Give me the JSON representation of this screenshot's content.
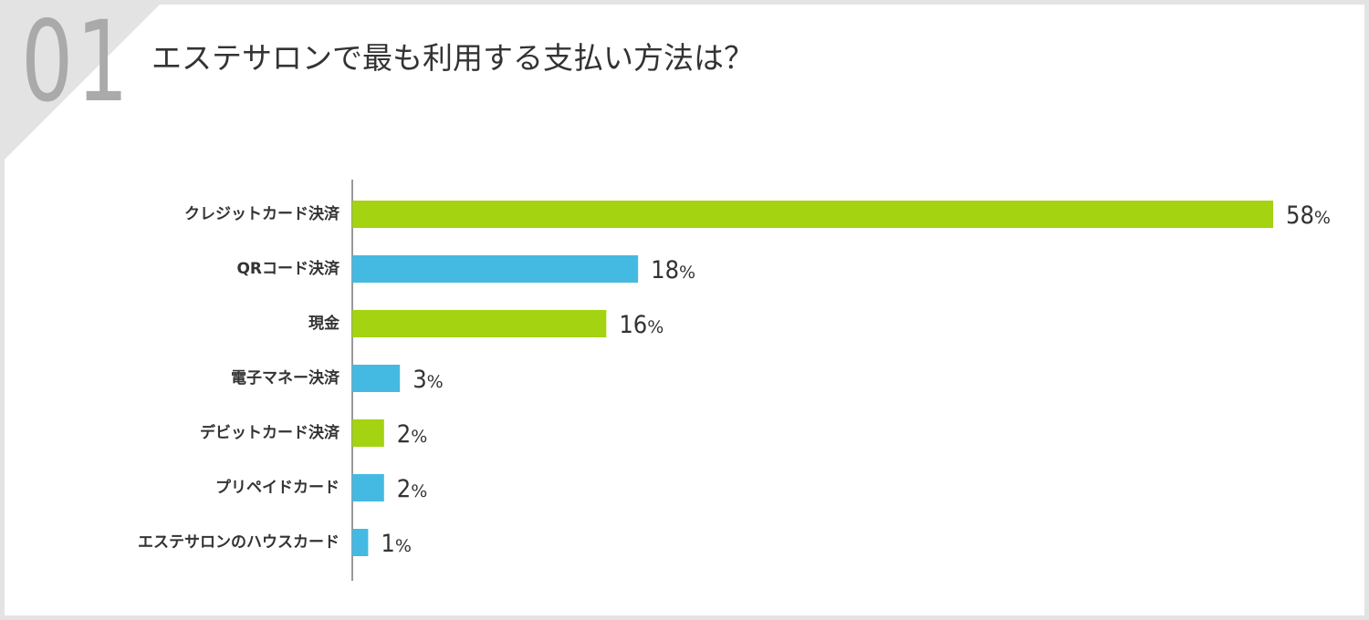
{
  "badge": "01",
  "title": "エステサロンで最も利用する支払い方法は？",
  "colors": {
    "green": "#a3d311",
    "blue": "#44bae3",
    "frame": "#e3e3e3",
    "badge": "#aaaaaa",
    "axis": "#333333"
  },
  "chart_data": {
    "type": "bar",
    "orientation": "horizontal",
    "categories": [
      "クレジットカード決済",
      "QRコード決済",
      "現金",
      "電子マネー決済",
      "デビットカード決済",
      "プリペイドカード",
      "エステサロンのハウスカード"
    ],
    "values": [
      58,
      18,
      16,
      3,
      2,
      2,
      1
    ],
    "value_labels": [
      "58",
      "18",
      "16",
      "3",
      "2",
      "2",
      "1"
    ],
    "unit": "%",
    "bar_colors": [
      "green",
      "blue",
      "green",
      "blue",
      "green",
      "blue",
      "blue"
    ],
    "xlim": [
      0,
      58
    ],
    "grid": false,
    "legend": "none"
  }
}
